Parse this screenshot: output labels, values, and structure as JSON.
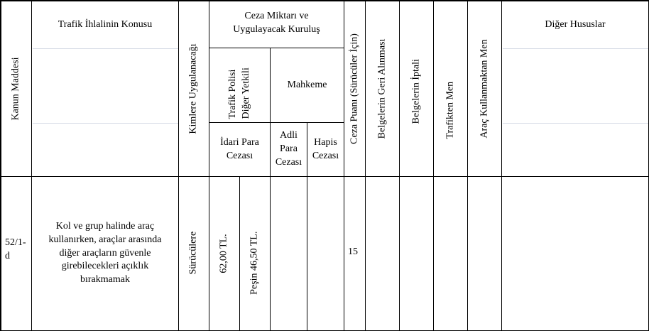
{
  "headers": {
    "kanun_maddesi": "Kanun Maddesi",
    "ihlal_konusu": "Trafik İhlalinin Konusu",
    "kimlere": "Kimlere Uygulanacağı",
    "ceza_miktari": "Ceza Miktarı ve Uygulayacak Kuruluş",
    "trafik_polisi": "Trafik Polisi Diğer Yetkili",
    "mahkeme": "Mahkeme",
    "idari_para": "İdari Para Cezası",
    "adli_para": "Adli Para Cezası",
    "hapis": "Hapis Cezası",
    "ceza_puani": "Ceza Puanı (Sürücüler İçin)",
    "belge_geri": "Belgelerin Geri Alınması",
    "belge_iptal": "Belgelerin İptali",
    "trafikten_men": "Trafikten Men",
    "arac_men": "Araç Kullanmaktan Men",
    "diger": "Diğer Hususlar"
  },
  "rows": [
    {
      "madde": "52/1-d",
      "konu": "Kol ve grup halinde araç kullanırken, araçlar arasında diğer araçların güvenle girebilecekleri açıklık bırakmamak",
      "kimlere": "Sürücülere",
      "idari_para_1": "62,00 TL.",
      "idari_para_2": "Peşin 46,50 TL.",
      "adli_para": "",
      "hapis": "",
      "ceza_puani": "15",
      "belge_geri": "",
      "belge_iptal": "",
      "trafikten_men": "",
      "arac_men": "",
      "diger": ""
    }
  ]
}
